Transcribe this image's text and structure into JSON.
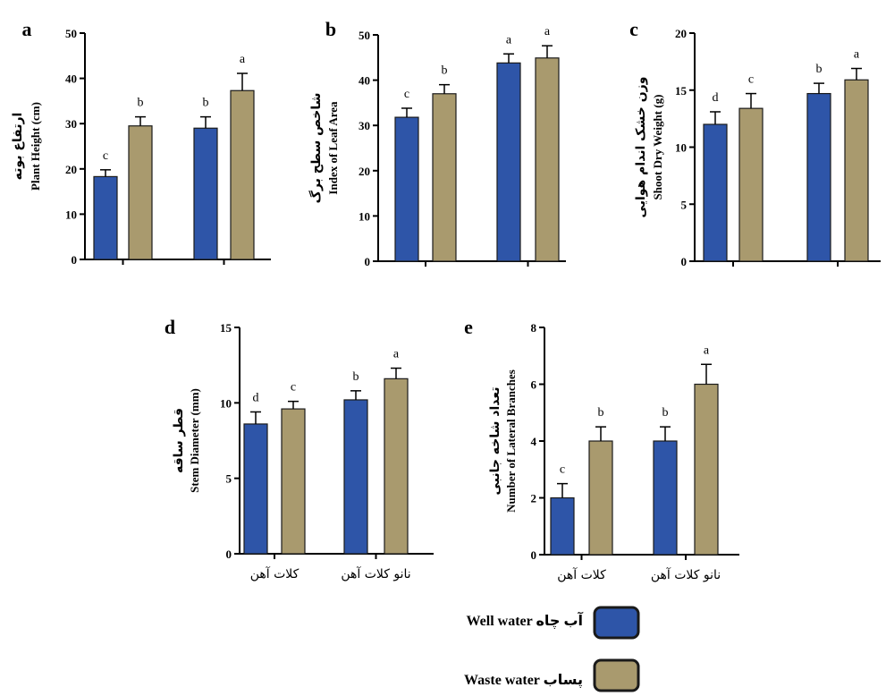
{
  "colors": {
    "well": "#2E55A8",
    "waste": "#A99A6E",
    "border": "#1a1a1a",
    "axis": "#000000"
  },
  "legend": {
    "well_label": "Well water آب چاه",
    "waste_label": "Waste water  پساب"
  },
  "chart_data": [
    {
      "panel": "a",
      "type": "bar",
      "ylabel_fa": "ارتفاع بوته",
      "ylabel_en": "Plant Height (cm)",
      "ylim": [
        0,
        50
      ],
      "yticks": [
        0,
        10,
        20,
        30,
        40,
        50
      ],
      "categories": [
        "کلات آهن",
        "نانو کلات آهن"
      ],
      "show_category_labels": false,
      "series": [
        {
          "key": "well",
          "values": [
            18.3,
            29
          ],
          "errors": [
            1.5,
            2.5
          ],
          "letters": [
            "c",
            "b"
          ]
        },
        {
          "key": "waste",
          "values": [
            29.5,
            37.3
          ],
          "errors": [
            2.0,
            3.8
          ],
          "letters": [
            "b",
            "a"
          ]
        }
      ]
    },
    {
      "panel": "b",
      "type": "bar",
      "ylabel_fa": "شاخص سطح برگ",
      "ylabel_en": "Index of Leaf Area",
      "ylim": [
        0,
        50
      ],
      "yticks": [
        0,
        10,
        20,
        30,
        40,
        50
      ],
      "categories": [
        "کلات آهن",
        "نانو کلات آهن"
      ],
      "show_category_labels": false,
      "series": [
        {
          "key": "well",
          "values": [
            31.8,
            43.8
          ],
          "errors": [
            2.0,
            2.0
          ],
          "letters": [
            "c",
            "a"
          ]
        },
        {
          "key": "waste",
          "values": [
            37,
            44.9
          ],
          "errors": [
            2.0,
            2.7
          ],
          "letters": [
            "b",
            "a"
          ]
        }
      ]
    },
    {
      "panel": "c",
      "type": "bar",
      "ylabel_fa": "وزن خشک اندام هوایی",
      "ylabel_en": "Shoot Dry Weight (g)",
      "ylim": [
        0,
        20
      ],
      "yticks": [
        0,
        5,
        10,
        15,
        20
      ],
      "categories": [
        "کلات آهن",
        "نانو کلات آهن"
      ],
      "show_category_labels": false,
      "series": [
        {
          "key": "well",
          "values": [
            12,
            14.7
          ],
          "errors": [
            1.1,
            0.9
          ],
          "letters": [
            "d",
            "b"
          ]
        },
        {
          "key": "waste",
          "values": [
            13.4,
            15.9
          ],
          "errors": [
            1.3,
            1.0
          ],
          "letters": [
            "c",
            "a"
          ]
        }
      ]
    },
    {
      "panel": "d",
      "type": "bar",
      "ylabel_fa": "قطر ساقه",
      "ylabel_en": "Stem Diameter (mm)",
      "ylim": [
        0,
        15
      ],
      "yticks": [
        0,
        5,
        10,
        15
      ],
      "categories": [
        "کلات آهن",
        "نانو کلات آهن"
      ],
      "show_category_labels": true,
      "series": [
        {
          "key": "well",
          "values": [
            8.6,
            10.2
          ],
          "errors": [
            0.8,
            0.6
          ],
          "letters": [
            "d",
            "b"
          ]
        },
        {
          "key": "waste",
          "values": [
            9.6,
            11.6
          ],
          "errors": [
            0.5,
            0.7
          ],
          "letters": [
            "c",
            "a"
          ]
        }
      ]
    },
    {
      "panel": "e",
      "type": "bar",
      "ylabel_fa": "تعداد شاخه جانبی",
      "ylabel_en": "Number of Lateral Branches",
      "ylim": [
        0,
        8
      ],
      "yticks": [
        0,
        2,
        4,
        6,
        8
      ],
      "categories": [
        "کلات آهن",
        "نانو کلات آهن"
      ],
      "show_category_labels": true,
      "series": [
        {
          "key": "well",
          "values": [
            2,
            4
          ],
          "errors": [
            0.5,
            0.5
          ],
          "letters": [
            "c",
            "b"
          ]
        },
        {
          "key": "waste",
          "values": [
            4,
            6
          ],
          "errors": [
            0.5,
            0.7
          ],
          "letters": [
            "b",
            "a"
          ]
        }
      ]
    }
  ]
}
